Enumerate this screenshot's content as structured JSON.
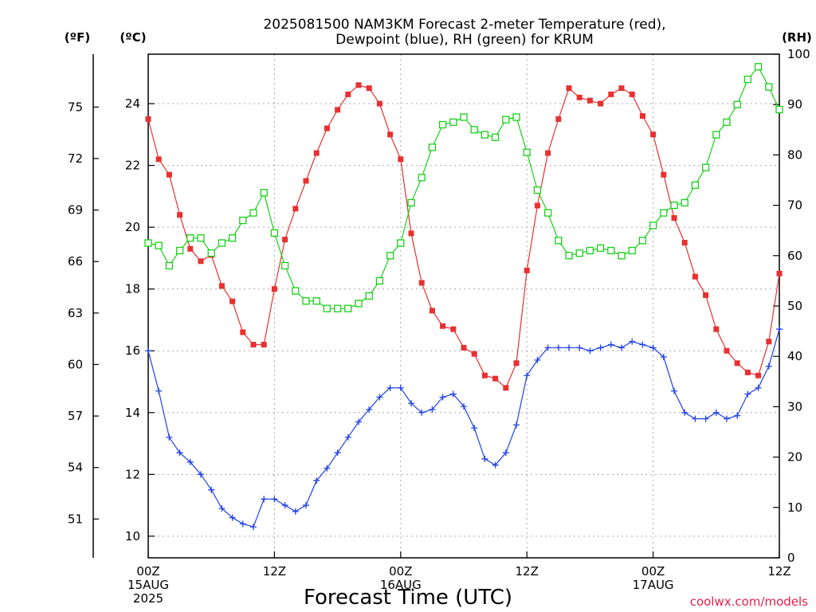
{
  "chart_data": {
    "type": "line",
    "title_line1": "2025081500 NAM3KM Forecast 2-meter Temperature (red),",
    "title_line2": "Dewpoint (blue), RH (green) for KRUM",
    "xlabel": "Forecast Time (UTC)",
    "credit": "coolwx.com/models",
    "units": {
      "fahrenheit": "(ºF)",
      "celsius": "(ºC)",
      "rh": "(RH)"
    },
    "grid": true,
    "xlim_hours": [
      0,
      60
    ],
    "x_ticks": [
      {
        "hour": 0,
        "lines": [
          "00Z",
          "15AUG",
          "2025"
        ]
      },
      {
        "hour": 12,
        "lines": [
          "12Z"
        ]
      },
      {
        "hour": 24,
        "lines": [
          "00Z",
          "16AUG"
        ]
      },
      {
        "hour": 36,
        "lines": [
          "12Z"
        ]
      },
      {
        "hour": 48,
        "lines": [
          "00Z",
          "17AUG"
        ]
      },
      {
        "hour": 60,
        "lines": [
          "12Z"
        ]
      }
    ],
    "y_left_c": {
      "range": [
        9.3,
        25.6
      ],
      "ticks": [
        10,
        12,
        14,
        16,
        18,
        20,
        22,
        24
      ]
    },
    "y_left_f": {
      "ticks": [
        51,
        54,
        57,
        60,
        63,
        66,
        69,
        72,
        75
      ]
    },
    "y_right_rh": {
      "range": [
        0,
        100
      ],
      "ticks": [
        0,
        10,
        20,
        30,
        40,
        50,
        60,
        70,
        80,
        90,
        100
      ]
    },
    "hours": [
      0,
      1,
      2,
      3,
      4,
      5,
      6,
      7,
      8,
      9,
      10,
      11,
      12,
      13,
      14,
      15,
      16,
      17,
      18,
      19,
      20,
      21,
      22,
      23,
      24,
      25,
      26,
      27,
      28,
      29,
      30,
      31,
      32,
      33,
      34,
      35,
      36,
      37,
      38,
      39,
      40,
      41,
      42,
      43,
      44,
      45,
      46,
      47,
      48,
      49,
      50,
      51,
      52,
      53,
      54,
      55,
      56,
      57,
      58,
      59,
      60
    ],
    "series": [
      {
        "name": "Temperature",
        "color": "#e83030",
        "marker": "filled-square",
        "axis": "celsius",
        "values": [
          23.5,
          22.2,
          21.7,
          20.4,
          19.3,
          18.9,
          19.1,
          18.1,
          17.6,
          16.6,
          16.2,
          16.2,
          18.0,
          19.6,
          20.6,
          21.5,
          22.4,
          23.2,
          23.8,
          24.3,
          24.6,
          24.5,
          24.0,
          23.0,
          22.2,
          19.8,
          18.2,
          17.3,
          16.8,
          16.7,
          16.1,
          15.9,
          15.2,
          15.1,
          14.8,
          15.6,
          18.6,
          20.7,
          22.4,
          23.5,
          24.5,
          24.2,
          24.1,
          24.0,
          24.3,
          24.5,
          24.3,
          23.6,
          23.0,
          21.7,
          20.3,
          19.5,
          18.4,
          17.8,
          16.7,
          16.0,
          15.6,
          15.3,
          15.2,
          16.3,
          18.5
        ]
      },
      {
        "name": "Dewpoint",
        "color": "#2040e8",
        "marker": "plus",
        "axis": "celsius",
        "values": [
          16.0,
          14.7,
          13.2,
          12.7,
          12.4,
          12.0,
          11.5,
          10.9,
          10.6,
          10.4,
          10.3,
          11.2,
          11.2,
          11.0,
          10.8,
          11.0,
          11.8,
          12.2,
          12.7,
          13.2,
          13.7,
          14.1,
          14.5,
          14.8,
          14.8,
          14.3,
          14.0,
          14.1,
          14.5,
          14.6,
          14.2,
          13.5,
          12.5,
          12.3,
          12.7,
          13.6,
          15.2,
          15.7,
          16.1,
          16.1,
          16.1,
          16.1,
          16.0,
          16.1,
          16.2,
          16.1,
          16.3,
          16.2,
          16.1,
          15.8,
          14.7,
          14.0,
          13.8,
          13.8,
          14.0,
          13.8,
          13.9,
          14.6,
          14.8,
          15.5,
          16.7
        ]
      },
      {
        "name": "RH",
        "color": "#18d018",
        "marker": "open-square",
        "axis": "rh",
        "values": [
          62.5,
          62,
          58,
          61,
          63.5,
          63.5,
          60.5,
          62.5,
          63.5,
          67,
          68.5,
          72.5,
          64.5,
          58,
          53,
          51,
          51,
          49.5,
          49.5,
          49.5,
          50.5,
          52,
          55,
          60,
          62.5,
          70.5,
          75.5,
          81.5,
          86,
          86.5,
          87.5,
          85,
          84,
          83.5,
          87,
          87.5,
          80.5,
          73,
          68.5,
          63,
          60,
          60.5,
          61,
          61.5,
          61,
          60,
          61,
          63,
          66,
          68.5,
          70,
          70.5,
          74,
          77.5,
          84,
          86.5,
          90,
          95,
          97.5,
          93.5,
          89
        ]
      }
    ]
  }
}
